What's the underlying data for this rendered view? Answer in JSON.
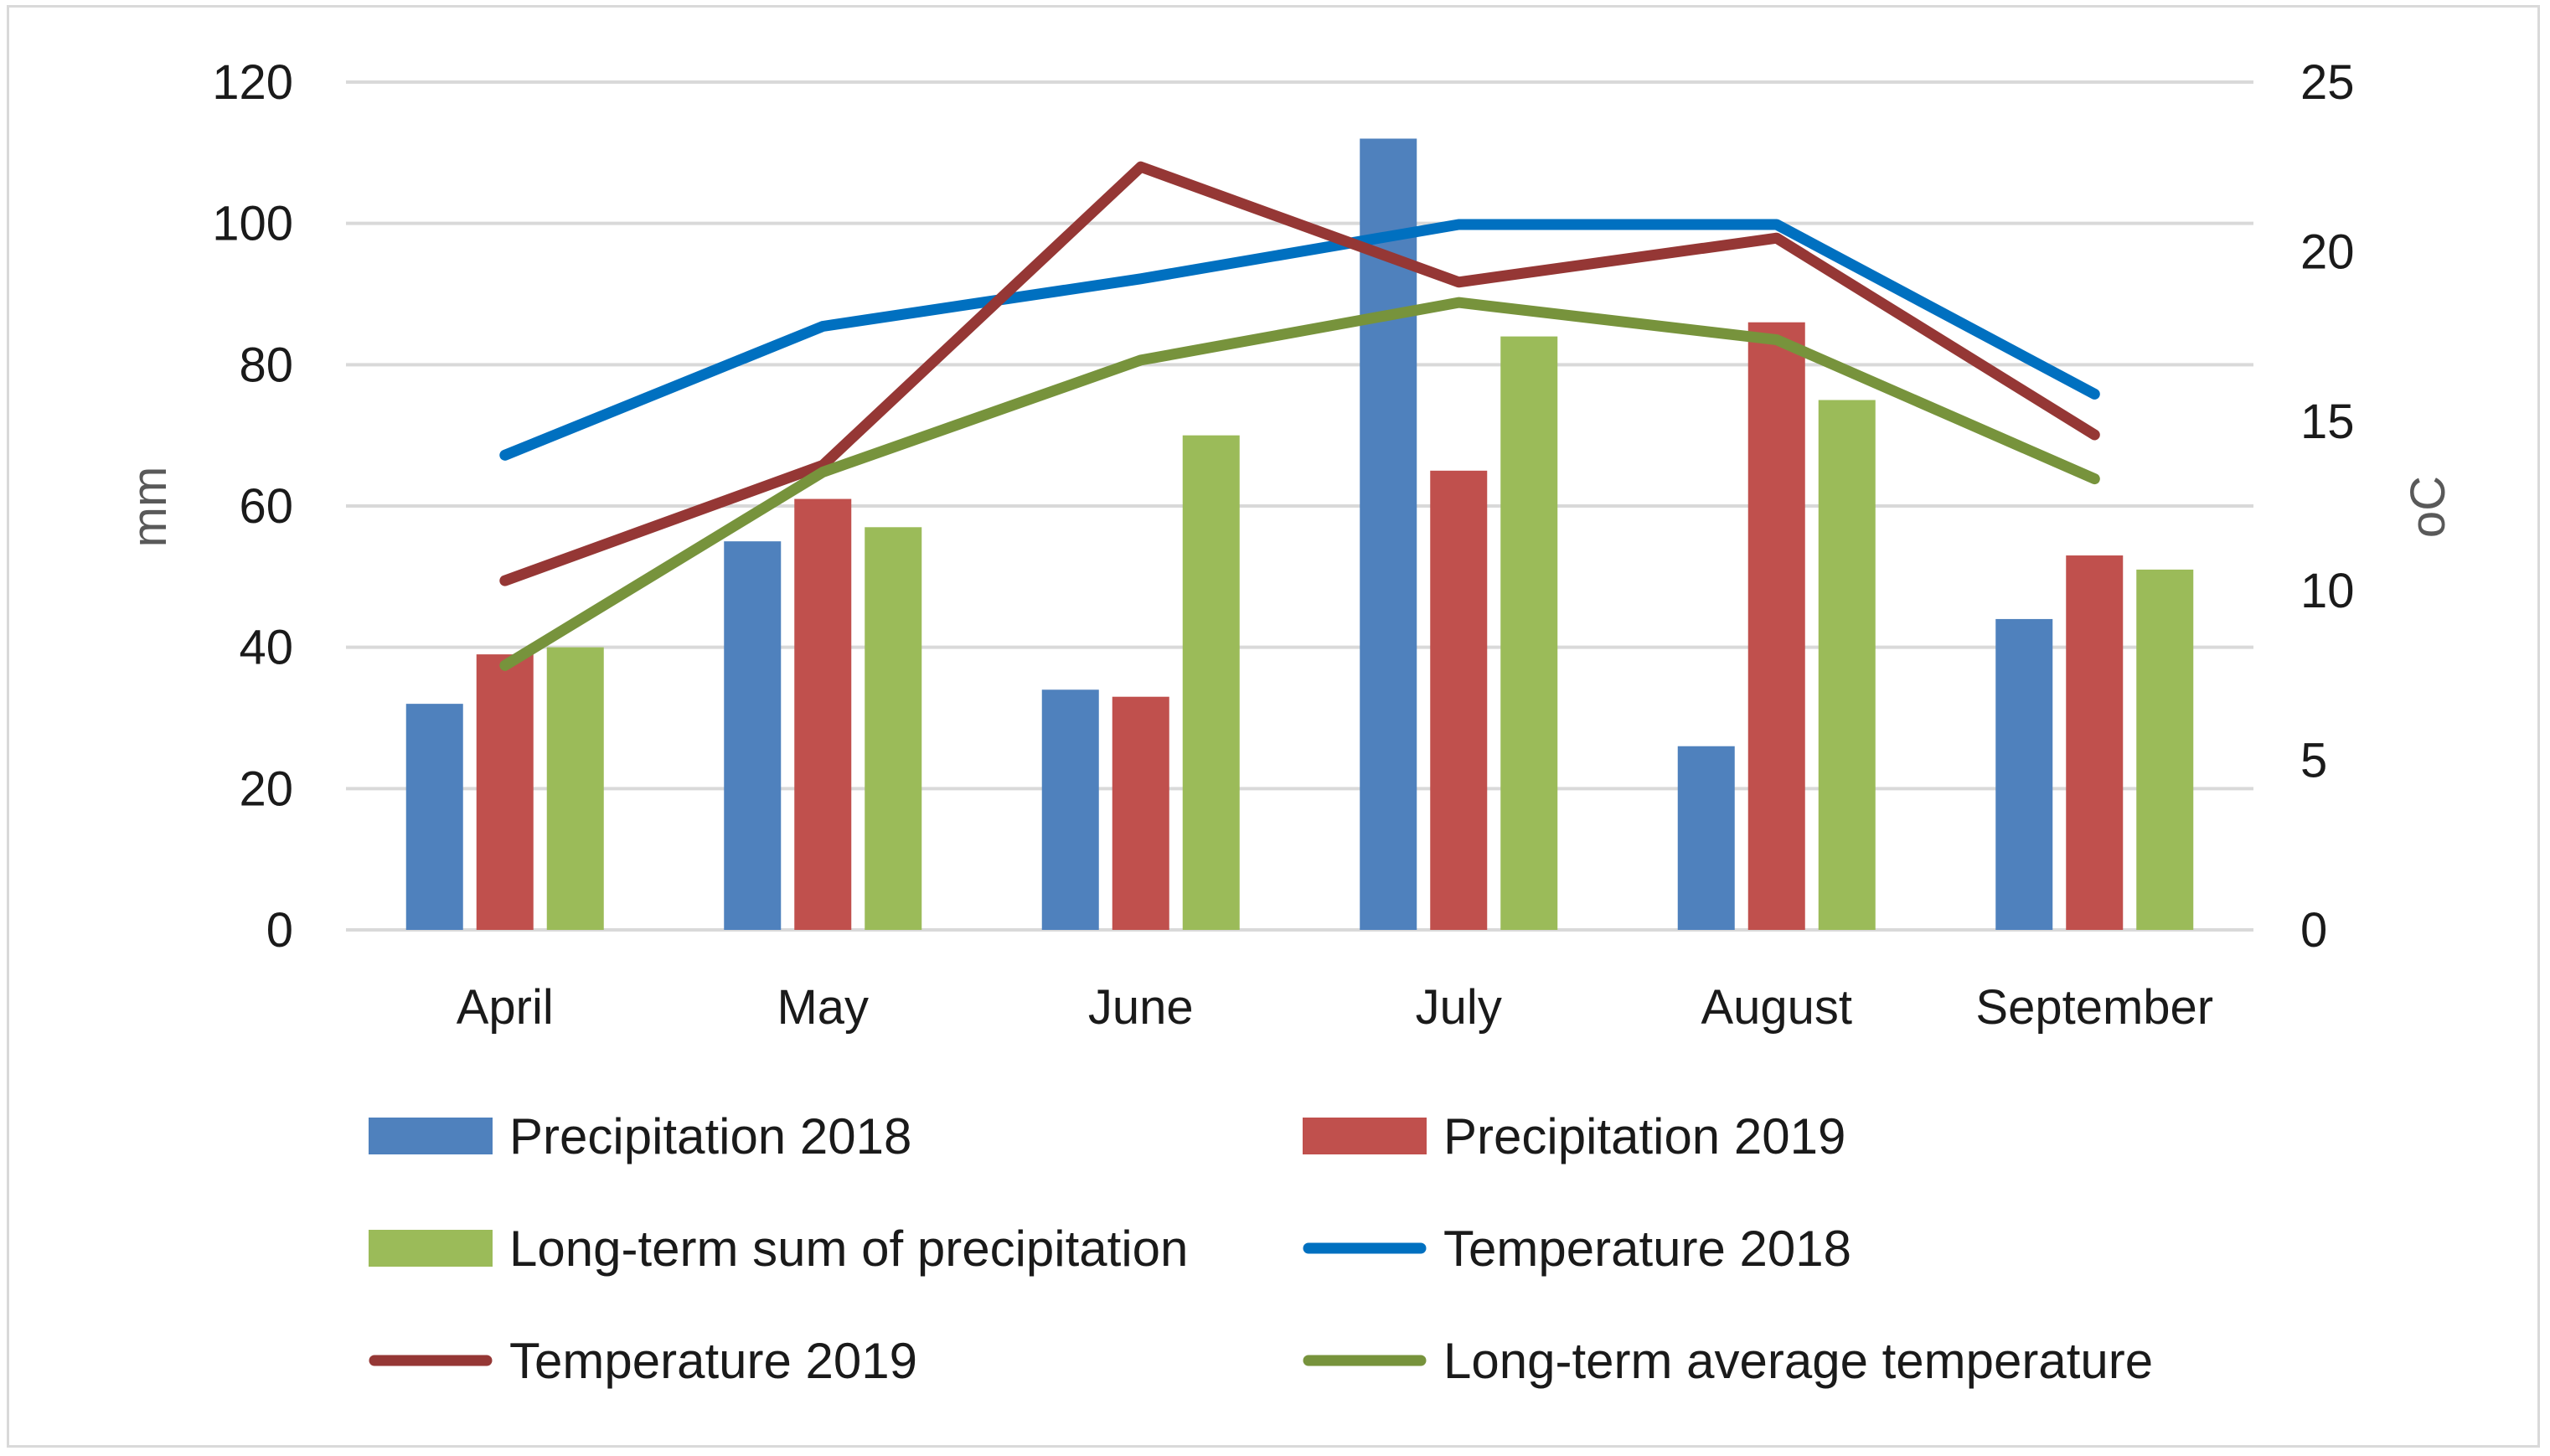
{
  "chart_data": {
    "type": "bar",
    "categories": [
      "April",
      "May",
      "June",
      "July",
      "August",
      "September"
    ],
    "series": [
      {
        "name": "Precipitation 2018",
        "kind": "bar",
        "axis": "left",
        "color": "#4f81bd",
        "values": [
          32,
          55,
          34,
          112,
          26,
          44
        ]
      },
      {
        "name": "Precipitation 2019",
        "kind": "bar",
        "axis": "left",
        "color": "#c0504d",
        "values": [
          39,
          61,
          33,
          65,
          86,
          53
        ]
      },
      {
        "name": "Long-term sum of precipitation",
        "kind": "bar",
        "axis": "left",
        "color": "#9bbb59",
        "values": [
          40,
          57,
          70,
          84,
          75,
          51
        ]
      },
      {
        "name": "Temperature 2018",
        "kind": "line",
        "axis": "right",
        "color": "#0070c0",
        "values": [
          14.0,
          17.8,
          19.2,
          20.8,
          20.8,
          15.8
        ]
      },
      {
        "name": "Temperature 2019",
        "kind": "line",
        "axis": "right",
        "color": "#953735",
        "values": [
          10.3,
          13.7,
          22.5,
          19.1,
          20.4,
          14.6
        ]
      },
      {
        "name": "Long-term average temperature",
        "kind": "line",
        "axis": "right",
        "color": "#77933c",
        "values": [
          7.8,
          13.5,
          16.8,
          18.5,
          17.4,
          13.3
        ]
      }
    ],
    "y_left": {
      "label": "mm",
      "min": 0,
      "max": 120,
      "ticks": [
        "0",
        "20",
        "40",
        "60",
        "80",
        "100",
        "120"
      ]
    },
    "y_right": {
      "label": "oC",
      "min": 0,
      "max": 25,
      "ticks": [
        "0",
        "5",
        "10",
        "15",
        "20",
        "25"
      ]
    },
    "grid": true,
    "legend_position": "bottom"
  }
}
